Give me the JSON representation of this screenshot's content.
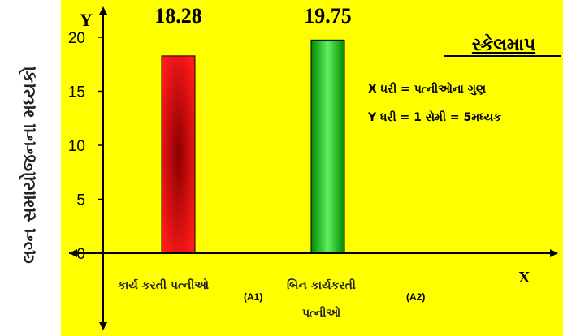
{
  "chart_data": {
    "type": "bar",
    "categories": [
      "કાર્ય કરતી પત્નીઓ",
      "બિન કાર્યકરતી પત્નીઓ"
    ],
    "category_line1": [
      "કાર્ય કરતી પત્નીઓ",
      "બિન કાર્યકરતી"
    ],
    "category_line2": [
      "",
      "પત્નીઓ"
    ],
    "category_codes": [
      "(A1)",
      "(A2)"
    ],
    "values": [
      18.28,
      19.75
    ],
    "data_labels": [
      "18.28",
      "19.75"
    ],
    "ylabel": "લગ્ન સમાયોજનના મધ્યકો",
    "yticks": [
      0,
      5,
      10,
      15,
      20
    ],
    "ylim": [
      0,
      22
    ],
    "x_axis_letter": "X",
    "y_axis_letter": "Y",
    "background_color": "#ffff00",
    "bar_colors": [
      "#ff1a1a",
      "#1fc21f"
    ],
    "scale_box": {
      "title": "સ્કેલમાપ",
      "line1": "X ધરી = પત્નીઓના ગુણ",
      "line2": "Y ધરી = 1 સેમી = 5મધ્યક"
    }
  }
}
